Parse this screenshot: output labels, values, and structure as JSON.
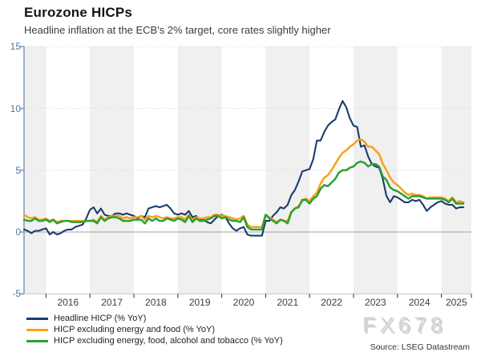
{
  "header": {
    "title": "Eurozone HICPs",
    "subtitle": "Headline inflation at the ECB's 2% target, core rates slightly higher"
  },
  "watermark": "FX678",
  "source": "Source: LSEG Datastream",
  "chart_data": {
    "type": "line",
    "title": "Eurozone HICPs",
    "xlabel": "",
    "ylabel": "",
    "ylim": [
      -5,
      15
    ],
    "y_ticks": [
      -5,
      0,
      5,
      10,
      15
    ],
    "x_tick_labels": [
      "2016",
      "2017",
      "2018",
      "2019",
      "2020",
      "2021",
      "2022",
      "2023",
      "2024",
      "2025"
    ],
    "x_start": "2015-07",
    "x_end": "2025-07",
    "x_frequency": "monthly",
    "grid": "dotted horizontal lines at 5, 10, 15; solid gray line at 0; alternating gray vertical bands on odd years",
    "legend_position": "bottom-left",
    "style": {
      "band_color": "#f0f0f0",
      "grid_color": "#dbdbdb",
      "zero_line_color": "#b3b3b3",
      "y_axis_color": "#7e99b8",
      "x_axis_color": "#c2c2c2",
      "x_tick_color": "#4d4d4d"
    },
    "series": [
      {
        "name": "Headline HICP (% YoY)",
        "slug": "headline-hicp",
        "color": "#1b3c6e",
        "values": [
          0.2,
          0.1,
          -0.1,
          0.1,
          0.1,
          0.2,
          0.3,
          -0.2,
          0.0,
          -0.2,
          -0.1,
          0.1,
          0.2,
          0.2,
          0.4,
          0.5,
          0.6,
          1.1,
          1.8,
          2.0,
          1.5,
          1.9,
          1.4,
          1.3,
          1.3,
          1.5,
          1.5,
          1.4,
          1.5,
          1.4,
          1.3,
          1.1,
          1.3,
          1.2,
          1.9,
          2.0,
          2.1,
          2.0,
          2.1,
          2.2,
          1.9,
          1.5,
          1.4,
          1.5,
          1.4,
          1.7,
          1.2,
          1.3,
          1.0,
          1.0,
          0.8,
          0.7,
          1.0,
          1.3,
          1.4,
          1.2,
          0.7,
          0.3,
          0.1,
          0.3,
          0.4,
          -0.2,
          -0.3,
          -0.3,
          -0.3,
          -0.3,
          0.9,
          0.9,
          1.3,
          1.6,
          2.0,
          1.9,
          2.2,
          3.0,
          3.4,
          4.1,
          4.9,
          5.0,
          5.1,
          5.9,
          7.4,
          7.4,
          8.1,
          8.6,
          8.9,
          9.1,
          9.9,
          10.6,
          10.1,
          9.2,
          8.6,
          8.5,
          6.9,
          7.0,
          6.1,
          5.5,
          5.3,
          5.2,
          4.3,
          2.9,
          2.4,
          2.9,
          2.8,
          2.6,
          2.4,
          2.4,
          2.6,
          2.5,
          2.6,
          2.2,
          1.7,
          2.0,
          2.2,
          2.4,
          2.5,
          2.3,
          2.2,
          2.2,
          1.9,
          2.0,
          2.0
        ]
      },
      {
        "name": "HICP excluding energy and food (% YoY)",
        "slug": "hicp-ex-energy-food",
        "color": "#f9a01b",
        "values": [
          1.4,
          1.2,
          1.1,
          1.2,
          1.0,
          1.0,
          1.1,
          0.9,
          1.0,
          0.8,
          0.9,
          0.9,
          0.9,
          0.9,
          0.9,
          0.9,
          0.9,
          0.9,
          0.9,
          1.0,
          0.8,
          1.3,
          1.0,
          1.2,
          1.3,
          1.3,
          1.3,
          1.1,
          1.2,
          1.1,
          1.2,
          1.2,
          1.3,
          1.0,
          1.3,
          1.2,
          1.3,
          1.2,
          1.1,
          1.2,
          1.1,
          1.1,
          1.2,
          1.2,
          1.0,
          1.4,
          1.0,
          1.2,
          1.1,
          1.1,
          1.2,
          1.2,
          1.4,
          1.4,
          1.3,
          1.3,
          1.2,
          1.1,
          1.0,
          1.1,
          1.3,
          0.6,
          0.4,
          0.4,
          0.4,
          0.4,
          1.4,
          1.2,
          1.0,
          0.8,
          1.0,
          0.9,
          0.9,
          1.6,
          1.9,
          2.1,
          2.5,
          2.7,
          2.5,
          2.9,
          3.2,
          3.9,
          4.4,
          4.6,
          5.0,
          5.5,
          6.0,
          6.4,
          6.6,
          6.9,
          7.1,
          7.4,
          7.5,
          7.3,
          6.9,
          6.9,
          6.6,
          6.3,
          5.5,
          5.0,
          4.4,
          4.0,
          3.8,
          3.5,
          3.2,
          3.0,
          3.1,
          3.0,
          3.0,
          2.9,
          2.7,
          2.8,
          2.8,
          2.8,
          2.8,
          2.7,
          2.5,
          2.8,
          2.4,
          2.5,
          2.4
        ]
      },
      {
        "name": "HICP excluding energy, food, alcohol and tobacco (% YoY)",
        "slug": "hicp-core",
        "color": "#2f9e32",
        "values": [
          1.0,
          0.9,
          0.9,
          1.1,
          0.9,
          0.9,
          1.0,
          0.8,
          1.0,
          0.7,
          0.8,
          0.9,
          0.9,
          0.8,
          0.8,
          0.8,
          0.8,
          0.9,
          0.9,
          0.9,
          0.7,
          1.2,
          0.9,
          1.1,
          1.2,
          1.2,
          1.1,
          0.9,
          0.9,
          0.9,
          1.0,
          1.0,
          1.0,
          0.7,
          1.1,
          0.9,
          1.1,
          0.9,
          0.9,
          1.1,
          1.0,
          0.9,
          1.1,
          1.0,
          0.8,
          1.3,
          0.8,
          1.1,
          0.9,
          0.9,
          1.0,
          1.1,
          1.3,
          1.3,
          1.1,
          1.2,
          1.0,
          0.9,
          0.9,
          0.8,
          1.2,
          0.4,
          0.2,
          0.2,
          0.2,
          0.2,
          1.4,
          1.1,
          0.9,
          0.7,
          1.0,
          0.9,
          0.7,
          1.6,
          1.9,
          2.0,
          2.6,
          2.6,
          2.3,
          2.7,
          2.9,
          3.5,
          3.8,
          3.7,
          4.0,
          4.3,
          4.8,
          5.0,
          5.0,
          5.2,
          5.3,
          5.6,
          5.7,
          5.6,
          5.3,
          5.5,
          5.5,
          5.3,
          4.5,
          4.2,
          3.6,
          3.4,
          3.3,
          3.1,
          2.9,
          2.7,
          2.9,
          2.9,
          2.9,
          2.8,
          2.7,
          2.7,
          2.7,
          2.7,
          2.7,
          2.6,
          2.4,
          2.7,
          2.3,
          2.3,
          2.3
        ]
      }
    ]
  }
}
